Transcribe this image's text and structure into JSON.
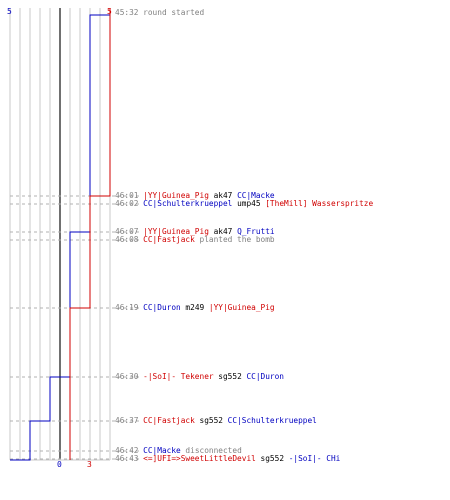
{
  "chart_data": {
    "type": "line",
    "title": "",
    "xlabel": "",
    "ylabel": "",
    "team_colors": {
      "blue": "#0000c0",
      "red": "#d00000"
    },
    "x_range": [
      0,
      10
    ],
    "series": [
      {
        "name": "",
        "color": "#0000c0",
        "start": 5,
        "end": 0,
        "steps": [
          [
            1,
            4
          ],
          [
            4,
            3
          ],
          [
            7,
            2
          ],
          [
            8,
            1
          ],
          [
            10,
            0
          ]
        ]
      },
      {
        "name": "",
        "color": "#d00000",
        "start": 5,
        "end": 3,
        "steps": [
          [
            2,
            4
          ],
          [
            6,
            3
          ]
        ]
      }
    ],
    "labels": {
      "blue_start": "5",
      "red_start": "5",
      "blue_end": "0",
      "red_end": "3"
    },
    "events": [
      {
        "time": "45:32",
        "parts": [
          {
            "text": "round started",
            "color": "gray"
          }
        ]
      },
      {
        "time": "46:01",
        "parts": [
          {
            "text": "|YY|Guinea_Pig",
            "color": "red"
          },
          {
            "text": " ak47 ",
            "color": "black"
          },
          {
            "text": "CC|Macke",
            "color": "blue"
          }
        ]
      },
      {
        "time": "46:02",
        "parts": [
          {
            "text": "CC|Schulterkrueppel",
            "color": "blue"
          },
          {
            "text": " ump45 ",
            "color": "black"
          },
          {
            "text": "[TheMill] Wasserspritze",
            "color": "red"
          }
        ]
      },
      {
        "time": "46:07",
        "parts": [
          {
            "text": "|YY|Guinea_Pig",
            "color": "red"
          },
          {
            "text": " ak47 ",
            "color": "black"
          },
          {
            "text": "Q_Frutti",
            "color": "blue"
          }
        ]
      },
      {
        "time": "46:08",
        "parts": [
          {
            "text": "CC|Fastjack",
            "color": "red"
          },
          {
            "text": " planted the bomb",
            "color": "gray"
          }
        ]
      },
      {
        "time": "46:19",
        "parts": [
          {
            "text": "CC|Duron",
            "color": "blue"
          },
          {
            "text": " m249 ",
            "color": "black"
          },
          {
            "text": "|YY|Guinea_Pig",
            "color": "red"
          }
        ]
      },
      {
        "time": "46:30",
        "parts": [
          {
            "text": "-|SoI|- Tekener",
            "color": "red"
          },
          {
            "text": " sg552 ",
            "color": "black"
          },
          {
            "text": "CC|Duron",
            "color": "blue"
          }
        ]
      },
      {
        "time": "46:37",
        "parts": [
          {
            "text": "CC|Fastjack",
            "color": "red"
          },
          {
            "text": " sg552 ",
            "color": "black"
          },
          {
            "text": "CC|Schulterkrueppel",
            "color": "blue"
          }
        ]
      },
      {
        "time": "46:42",
        "parts": [
          {
            "text": "CC|Macke",
            "color": "blue"
          },
          {
            "text": " disconnected",
            "color": "gray"
          }
        ]
      },
      {
        "time": "46:43",
        "parts": [
          {
            "text": "<=]UFI=>SweetLittleDevil",
            "color": "red"
          },
          {
            "text": " sg552 ",
            "color": "black"
          },
          {
            "text": "-|SoI|- CHi",
            "color": "blue"
          }
        ]
      }
    ]
  }
}
